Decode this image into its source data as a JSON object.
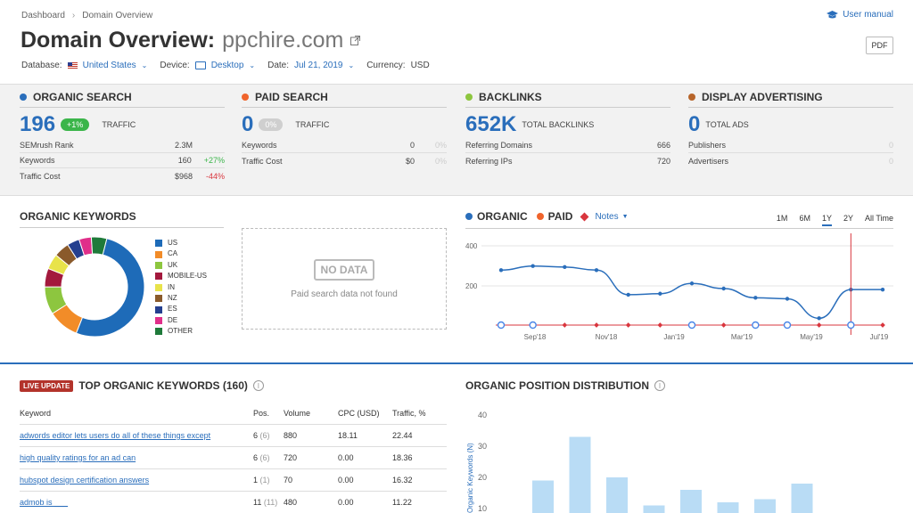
{
  "breadcrumb": {
    "root": "Dashboard",
    "current": "Domain Overview"
  },
  "user_manual": "User manual",
  "title": {
    "prefix": "Domain Overview:",
    "domain": "ppchire.com"
  },
  "pdf_label": "PDF",
  "filters": {
    "database_label": "Database:",
    "database_value": "United States",
    "device_label": "Device:",
    "device_value": "Desktop",
    "date_label": "Date:",
    "date_value": "Jul 21, 2019",
    "currency_label": "Currency:",
    "currency_value": "USD"
  },
  "colors": {
    "organic": "#2a6ebb",
    "paid": "#f0642c",
    "backlinks": "#8dc63f",
    "display": "#b7652a",
    "accent": "#2a6ebb",
    "positive": "#3bb54a",
    "negative": "#d9363e"
  },
  "cards": {
    "organic": {
      "title": "Organic Search",
      "value": "196",
      "badge": "+1%",
      "value_label": "TRAFFIC",
      "rows": [
        {
          "label": "SEMrush Rank",
          "value": "2.3M",
          "change": ""
        },
        {
          "label": "Keywords",
          "value": "160",
          "change": "+27%"
        },
        {
          "label": "Traffic Cost",
          "value": "$968",
          "change": "-44%"
        }
      ]
    },
    "paid": {
      "title": "Paid Search",
      "value": "0",
      "badge": "0%",
      "value_label": "TRAFFIC",
      "rows": [
        {
          "label": "Keywords",
          "value": "0",
          "change": "0%"
        },
        {
          "label": "Traffic Cost",
          "value": "$0",
          "change": "0%"
        }
      ]
    },
    "backlinks": {
      "title": "Backlinks",
      "value": "652K",
      "value_label": "TOTAL BACKLINKS",
      "rows": [
        {
          "label": "Referring Domains",
          "value": "666"
        },
        {
          "label": "Referring IPs",
          "value": "720"
        }
      ]
    },
    "display": {
      "title": "Display Advertising",
      "value": "0",
      "value_label": "TOTAL ADS",
      "rows": [
        {
          "label": "Publishers",
          "value": "0"
        },
        {
          "label": "Advertisers",
          "value": "0"
        }
      ]
    }
  },
  "organic_keywords": {
    "title": "Organic Keywords",
    "legend": [
      {
        "label": "US",
        "color": "#1e6bb8"
      },
      {
        "label": "CA",
        "color": "#f28c28"
      },
      {
        "label": "UK",
        "color": "#8dc63f"
      },
      {
        "label": "MOBILE-US",
        "color": "#a3193d"
      },
      {
        "label": "IN",
        "color": "#e8e34a"
      },
      {
        "label": "NZ",
        "color": "#8a5a2b"
      },
      {
        "label": "ES",
        "color": "#243f8f"
      },
      {
        "label": "DE",
        "color": "#e02f8a"
      },
      {
        "label": "OTHER",
        "color": "#1f7a3a"
      }
    ],
    "shares": [
      52,
      10,
      9,
      6,
      5,
      5,
      4,
      4,
      5
    ]
  },
  "no_data": {
    "badge": "NO DATA",
    "message": "Paid search data not found"
  },
  "trend": {
    "organic_label": "ORGANIC",
    "paid_label": "PAID",
    "notes_label": "Notes",
    "ranges": [
      "1M",
      "6M",
      "1Y",
      "2Y",
      "All Time"
    ],
    "active_range": "1Y"
  },
  "trend_chart": {
    "type": "line",
    "y_ticks": [
      "400",
      "200"
    ],
    "x_labels": [
      "Sep'18",
      "Nov'18",
      "Jan'19",
      "Mar'19",
      "May'19",
      "Jul'19"
    ],
    "organic": [
      290,
      310,
      305,
      290,
      170,
      175,
      225,
      200,
      155,
      150,
      55,
      195,
      195
    ],
    "ylim": [
      0,
      400
    ]
  },
  "top_keywords": {
    "live": "live update",
    "title": "TOP ORGANIC KEYWORDS (160)",
    "info": "i",
    "headers": [
      "Keyword",
      "Pos.",
      "Volume",
      "CPC (USD)",
      "Traffic, %"
    ],
    "rows": [
      {
        "keyword": "adwords editor lets users do all of these things except",
        "pos": "6",
        "prev": "(6)",
        "volume": "880",
        "cpc": "18.11",
        "traffic": "22.44"
      },
      {
        "keyword": "high quality ratings for an ad can",
        "pos": "6",
        "prev": "(6)",
        "volume": "720",
        "cpc": "0.00",
        "traffic": "18.36"
      },
      {
        "keyword": "hubspot design certification answers",
        "pos": "1",
        "prev": "(1)",
        "volume": "70",
        "cpc": "0.00",
        "traffic": "16.32"
      },
      {
        "keyword": "admob is ___",
        "pos": "11",
        "prev": "(11)",
        "volume": "480",
        "cpc": "0.00",
        "traffic": "11.22"
      }
    ]
  },
  "position_distribution": {
    "title": "ORGANIC POSITION DISTRIBUTION",
    "info": "i",
    "ylabel": "Organic Keywords (N)",
    "y_ticks": [
      "40",
      "30",
      "20",
      "10"
    ],
    "values": [
      19,
      33,
      20,
      11,
      16,
      12,
      13,
      18
    ],
    "ylim": [
      0,
      45
    ]
  },
  "chart_data": [
    {
      "type": "pie",
      "title": "Organic Keywords",
      "categories": [
        "US",
        "CA",
        "UK",
        "MOBILE-US",
        "IN",
        "NZ",
        "ES",
        "DE",
        "OTHER"
      ],
      "values": [
        52,
        10,
        9,
        6,
        5,
        5,
        4,
        4,
        5
      ]
    },
    {
      "type": "line",
      "title": "",
      "series": [
        {
          "name": "ORGANIC",
          "values": [
            290,
            310,
            305,
            290,
            170,
            175,
            225,
            200,
            155,
            150,
            55,
            195,
            195
          ]
        }
      ],
      "ylim": [
        0,
        400
      ]
    },
    {
      "type": "bar",
      "title": "ORGANIC POSITION DISTRIBUTION",
      "ylabel": "Organic Keywords (N)",
      "values": [
        19,
        33,
        20,
        11,
        16,
        12,
        13,
        18
      ],
      "ylim": [
        0,
        45
      ]
    }
  ]
}
